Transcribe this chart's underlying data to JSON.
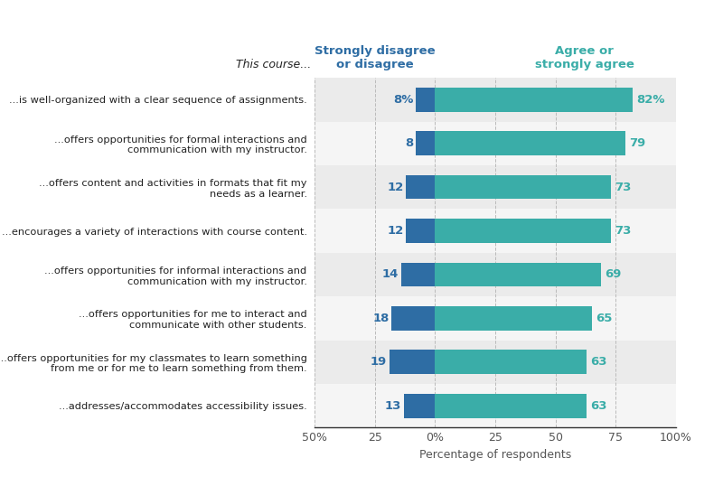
{
  "categories": [
    "...is well-organized with a clear sequence of assignments.",
    "...offers opportunities for formal interactions and\ncommunication with my instructor.",
    "...offers content and activities in formats that fit my\nneeds as a learner.",
    "...encourages a variety of interactions with course content.",
    "...offers opportunities for informal interactions and\ncommunication with my instructor.",
    "...offers opportunities for me to interact and\ncommunicate with other students.",
    "...offers opportunities for my classmates to learn something\nfrom me or for me to learn something from them.",
    "...addresses/accommodates accessibility issues."
  ],
  "disagree_values": [
    8,
    8,
    12,
    12,
    14,
    18,
    19,
    13
  ],
  "agree_values": [
    82,
    79,
    73,
    73,
    69,
    65,
    63,
    63
  ],
  "disagree_labels": [
    "8%",
    "8",
    "12",
    "12",
    "14",
    "18",
    "19",
    "13"
  ],
  "agree_labels": [
    "82%",
    "79",
    "73",
    "73",
    "69",
    "65",
    "63",
    "63"
  ],
  "disagree_color": "#2E6DA4",
  "agree_color": "#3AADA8",
  "header_left": "Strongly disagree\nor disagree",
  "header_right": "Agree or\nstrongly agree",
  "header_left_color": "#2E6DA4",
  "header_right_color": "#3AADA8",
  "this_course_label": "This course...",
  "xlabel": "Percentage of respondents",
  "xlim": [
    -50,
    100
  ],
  "xticks": [
    -50,
    -25,
    0,
    25,
    50,
    75,
    100
  ],
  "xticklabels": [
    "50%",
    "25",
    "0%",
    "25",
    "50",
    "75",
    "100%"
  ],
  "row_bg_colors": [
    "#EBEBEB",
    "#F5F5F5"
  ],
  "bar_height": 0.55,
  "label_fontsize": 9.5,
  "tick_fontsize": 9,
  "xlabel_fontsize": 9,
  "cat_fontsize": 8.2,
  "header_fontsize": 9.5,
  "this_course_fontsize": 9
}
